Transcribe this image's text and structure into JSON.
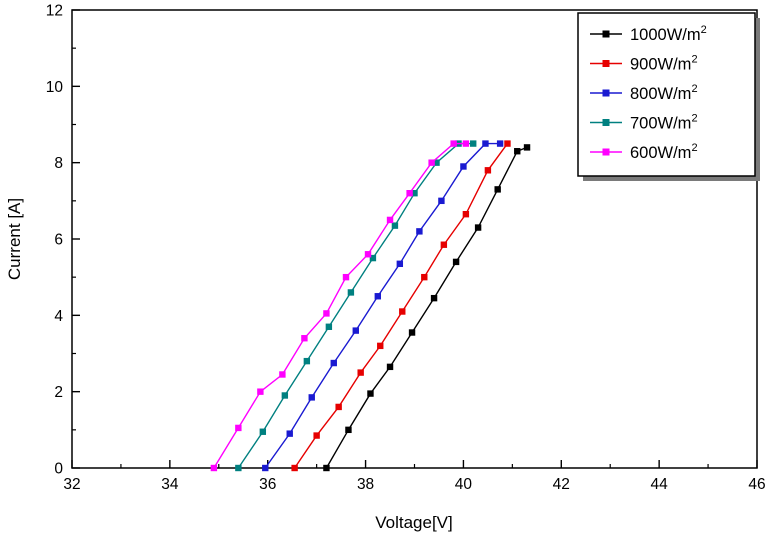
{
  "chart_data": {
    "type": "line",
    "title": "",
    "xlabel": "Voltage[V]",
    "ylabel": "Current [A]",
    "xlim": [
      32,
      46
    ],
    "ylim": [
      0,
      12
    ],
    "xticks": [
      32,
      34,
      36,
      38,
      40,
      42,
      44,
      46
    ],
    "yticks": [
      0,
      2,
      4,
      6,
      8,
      10,
      12
    ],
    "x_minor_step": 1,
    "y_minor_step": 1,
    "grid": false,
    "marker": "square",
    "legend_position": "top-right",
    "legend_border_color": "#000000",
    "legend_shadow_color": "#7a7a7a",
    "series": [
      {
        "name": "1000W/m²",
        "label_base": "1000W/m",
        "label_sup": "2",
        "color": "#000000",
        "x": [
          37.2,
          37.65,
          38.1,
          38.5,
          38.95,
          39.4,
          39.85,
          40.3,
          40.7,
          41.1,
          41.3
        ],
        "y": [
          0,
          1.0,
          1.95,
          2.65,
          3.55,
          4.45,
          5.4,
          6.3,
          7.3,
          8.3,
          8.4
        ]
      },
      {
        "name": "900W/m²",
        "label_base": "900W/m",
        "label_sup": "2",
        "color": "#e60000",
        "x": [
          36.55,
          37.0,
          37.45,
          37.9,
          38.3,
          38.75,
          39.2,
          39.6,
          40.05,
          40.5,
          40.9
        ],
        "y": [
          0,
          0.85,
          1.6,
          2.5,
          3.2,
          4.1,
          5.0,
          5.85,
          6.65,
          7.8,
          8.5
        ]
      },
      {
        "name": "800W/m²",
        "label_base": "800W/m",
        "label_sup": "2",
        "color": "#1a1ad1",
        "x": [
          35.95,
          36.45,
          36.9,
          37.35,
          37.8,
          38.25,
          38.7,
          39.1,
          39.55,
          40.0,
          40.45,
          40.75
        ],
        "y": [
          0,
          0.9,
          1.85,
          2.75,
          3.6,
          4.5,
          5.35,
          6.2,
          7.0,
          7.9,
          8.5,
          8.5
        ]
      },
      {
        "name": "700W/m²",
        "label_base": "700W/m",
        "label_sup": "2",
        "color": "#008080",
        "x": [
          35.4,
          35.9,
          36.35,
          36.8,
          37.25,
          37.7,
          38.15,
          38.6,
          39.0,
          39.45,
          39.9,
          40.2
        ],
        "y": [
          0,
          0.95,
          1.9,
          2.8,
          3.7,
          4.6,
          5.5,
          6.35,
          7.2,
          8.0,
          8.5,
          8.5
        ]
      },
      {
        "name": "600W/m²",
        "label_base": "600W/m",
        "label_sup": "2",
        "color": "#ff00ff",
        "x": [
          34.9,
          35.4,
          35.85,
          36.3,
          36.75,
          37.2,
          37.6,
          38.05,
          38.5,
          38.9,
          39.35,
          39.8,
          40.05
        ],
        "y": [
          0,
          1.05,
          2.0,
          2.45,
          3.4,
          4.05,
          5.0,
          5.6,
          6.5,
          7.2,
          8.0,
          8.5,
          8.5
        ]
      }
    ]
  }
}
